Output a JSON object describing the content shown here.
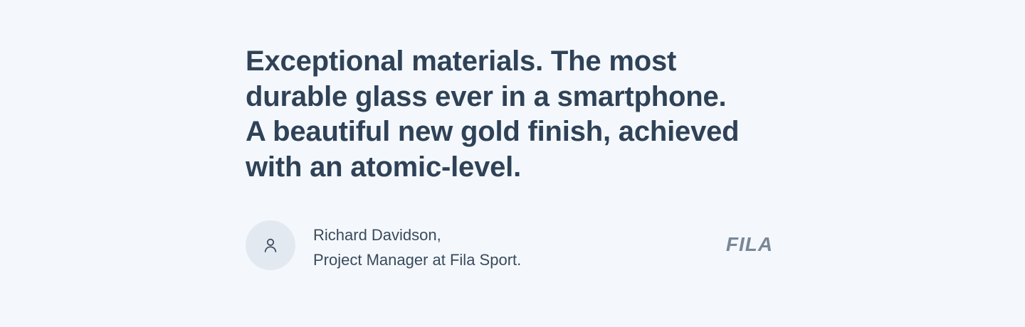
{
  "testimonial": {
    "quote_lines": [
      "Exceptional materials. The most",
      "durable glass ever in a smartphone.",
      "A beautiful new gold finish, achieved",
      "with an atomic-level."
    ],
    "author": {
      "name": "Richard Davidson,",
      "role": "Project Manager at Fila Sport.",
      "avatar_icon": "user-icon"
    },
    "brand": {
      "logo_text": "FILA",
      "logo_color": "#7a8796"
    }
  },
  "colors": {
    "background": "#f4f8fc",
    "quote_text": "#2f4257",
    "author_text": "#3a4a5c",
    "avatar_bg": "#e3e9f0"
  }
}
